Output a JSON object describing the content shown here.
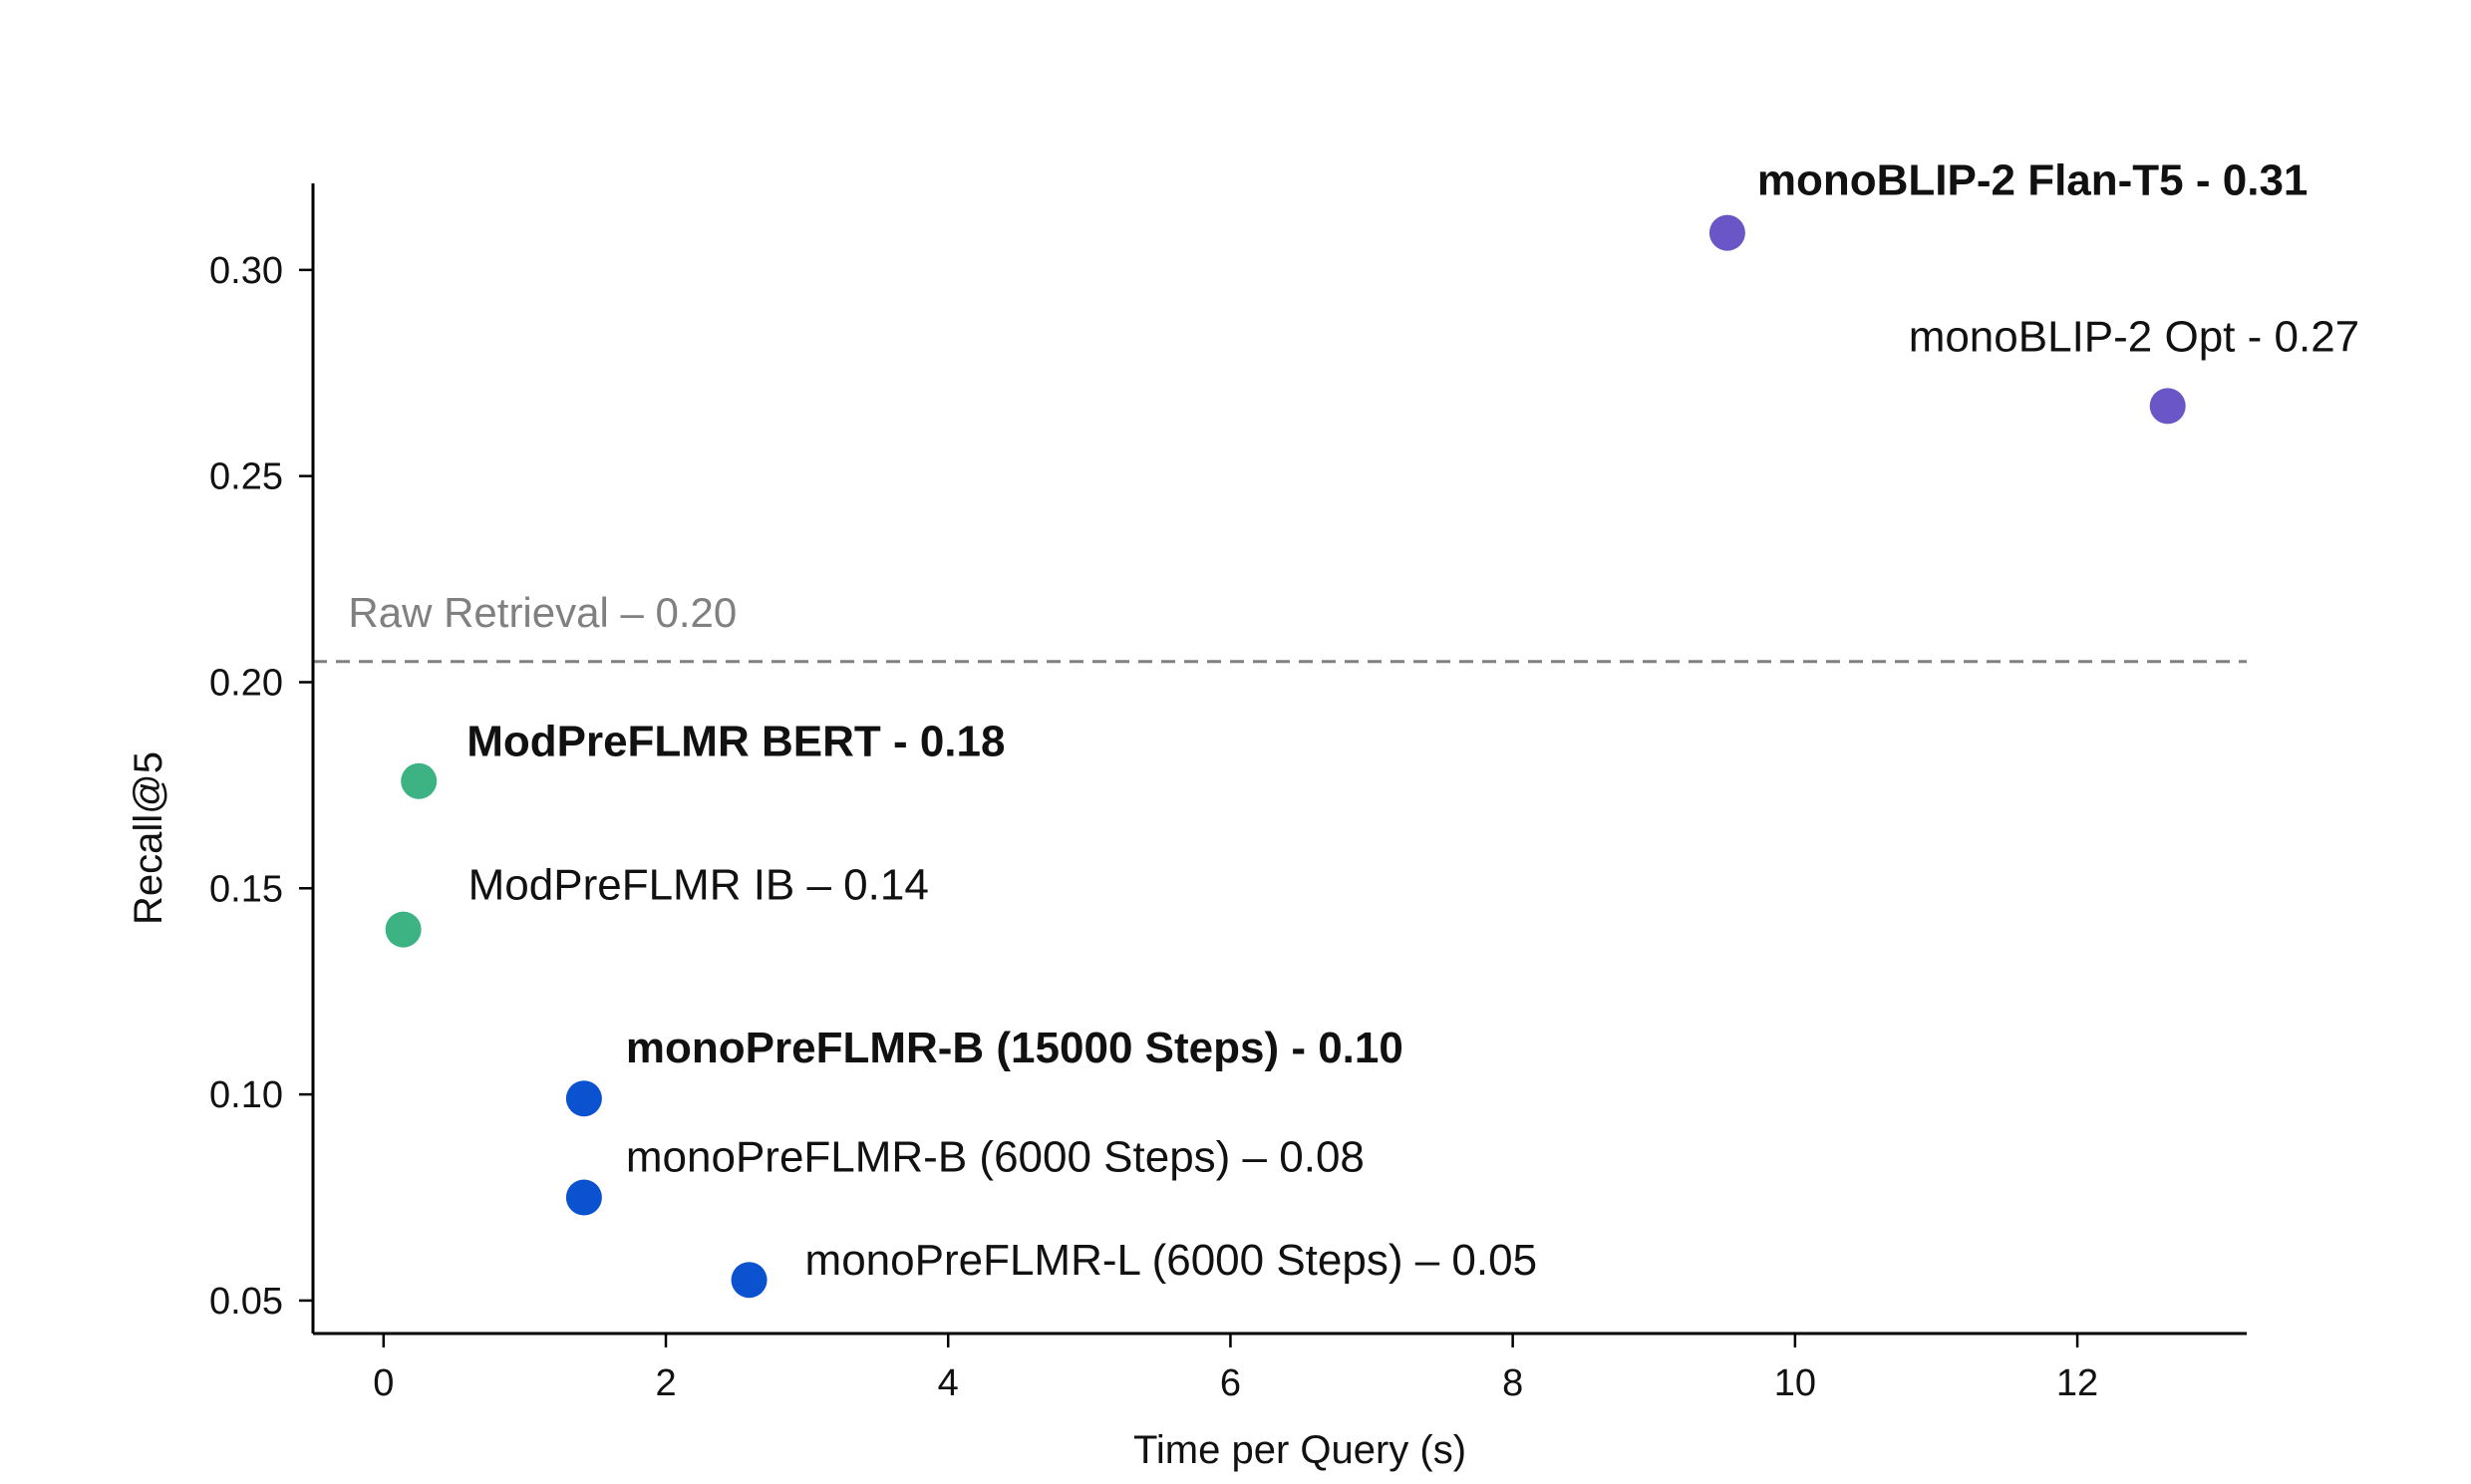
{
  "chart_data": {
    "type": "scatter",
    "xlabel": "Time per Query (s)",
    "ylabel": "Recall@5",
    "xlim": [
      -0.5,
      13.2
    ],
    "ylim": [
      0.042,
      0.321
    ],
    "xticks": [
      0,
      2,
      4,
      6,
      8,
      10,
      12
    ],
    "xtick_labels": [
      "0",
      "2",
      "4",
      "6",
      "8",
      "10",
      "12"
    ],
    "yticks": [
      0.05,
      0.1,
      0.15,
      0.2,
      0.25,
      0.3
    ],
    "ytick_labels": [
      "0.05",
      "0.10",
      "0.15",
      "0.20",
      "0.25",
      "0.30"
    ],
    "grid": false,
    "reference_line": {
      "y": 0.205,
      "label": "Raw Retrieval – 0.20",
      "color": "#808080",
      "style": "dashed"
    },
    "points": [
      {
        "label": "monoBLIP-2 Flan-T5 - 0.31",
        "x": 9.52,
        "y": 0.309,
        "color": "#6a56c6",
        "bold": true
      },
      {
        "label": "monoBLIP-2 Opt - 0.27",
        "x": 12.64,
        "y": 0.267,
        "color": "#6a56c6",
        "bold": false
      },
      {
        "label": "ModPreFLMR BERT - 0.18",
        "x": 0.25,
        "y": 0.176,
        "color": "#3db384",
        "bold": true
      },
      {
        "label": "ModPreFLMR IB – 0.14",
        "x": 0.14,
        "y": 0.14,
        "color": "#3db384",
        "bold": false
      },
      {
        "label": "monoPreFLMR-B (15000 Steps) - 0.10",
        "x": 1.42,
        "y": 0.099,
        "color": "#0a52d0",
        "bold": true
      },
      {
        "label": "monoPreFLMR-B (6000 Steps) – 0.08",
        "x": 1.42,
        "y": 0.075,
        "color": "#0a52d0",
        "bold": false
      },
      {
        "label": "monoPreFLMR-L (6000 Steps) – 0.05",
        "x": 2.59,
        "y": 0.055,
        "color": "#0a52d0",
        "bold": false
      }
    ]
  }
}
